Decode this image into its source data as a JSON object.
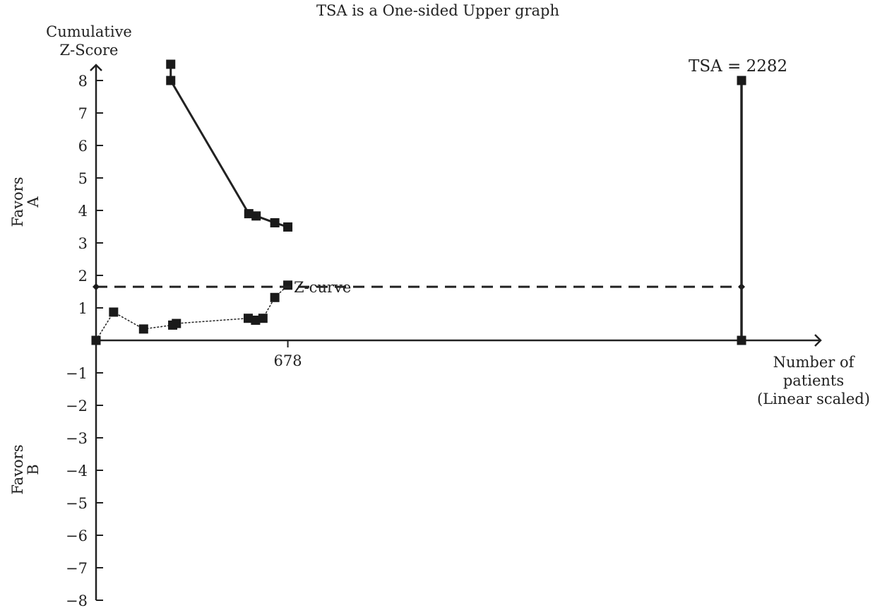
{
  "chart_data": {
    "type": "line",
    "title": "TSA is a One-sided Upper graph",
    "ylabel_lines": [
      "Cumulative",
      "Z-Score"
    ],
    "xlabel_lines": [
      "Number of",
      "patients",
      "(Linear scaled)"
    ],
    "favors_a": [
      "Favors",
      "A"
    ],
    "favors_b": [
      "Favors",
      "B"
    ],
    "xlim": [
      0,
      2282
    ],
    "ylim": [
      -8,
      8
    ],
    "yticks": [
      8,
      7,
      6,
      5,
      4,
      3,
      2,
      1,
      -1,
      -2,
      -3,
      -4,
      -5,
      -6,
      -7,
      -8
    ],
    "ytick_labels": [
      "8",
      "7",
      "6",
      "5",
      "4",
      "3",
      "2",
      "1",
      "−1",
      "−2",
      "−3",
      "−4",
      "−5",
      "−6",
      "−7",
      "−8"
    ],
    "x_marker": {
      "value": 678,
      "label": "678"
    },
    "tsa_label": "TSA = 2282",
    "z_curve_label": "Z-curve",
    "series": [
      {
        "role": "boundary",
        "points": [
          {
            "x": 264,
            "y": 8.5
          },
          {
            "x": 264,
            "y": 8.0
          },
          {
            "x": 540,
            "y": 3.9
          },
          {
            "x": 566,
            "y": 3.83
          },
          {
            "x": 632,
            "y": 3.62
          },
          {
            "x": 678,
            "y": 3.49
          }
        ]
      },
      {
        "role": "z-curve",
        "points": [
          {
            "x": 0,
            "y": 0.0
          },
          {
            "x": 62,
            "y": 0.87
          },
          {
            "x": 168,
            "y": 0.35
          },
          {
            "x": 271,
            "y": 0.47
          },
          {
            "x": 284,
            "y": 0.52
          },
          {
            "x": 538,
            "y": 0.68
          },
          {
            "x": 564,
            "y": 0.62
          },
          {
            "x": 590,
            "y": 0.68
          },
          {
            "x": 632,
            "y": 1.32
          },
          {
            "x": 678,
            "y": 1.7
          }
        ]
      },
      {
        "role": "significance-line",
        "points": [
          {
            "x": 0,
            "y": 1.65
          },
          {
            "x": 2282,
            "y": 1.65
          }
        ]
      },
      {
        "role": "tsa-line",
        "points": [
          {
            "x": 2282,
            "y": 0
          },
          {
            "x": 2282,
            "y": 8
          }
        ]
      }
    ]
  }
}
